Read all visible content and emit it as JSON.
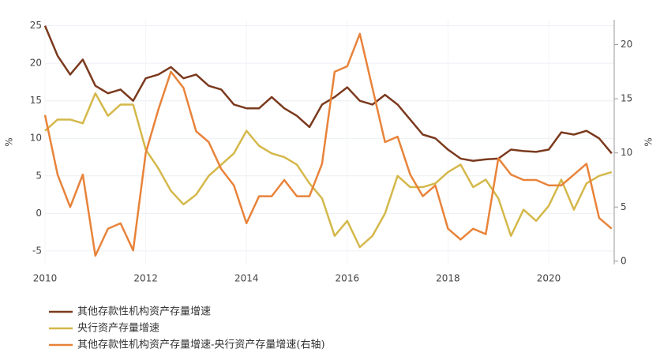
{
  "chart_data": {
    "type": "line",
    "x": [
      2010,
      2010.25,
      2010.5,
      2010.75,
      2011,
      2011.25,
      2011.5,
      2011.75,
      2012,
      2012.25,
      2012.5,
      2012.75,
      2013,
      2013.25,
      2013.5,
      2013.75,
      2014,
      2014.25,
      2014.5,
      2014.75,
      2015,
      2015.25,
      2015.5,
      2015.75,
      2016,
      2016.25,
      2016.5,
      2016.75,
      2017,
      2017.25,
      2017.5,
      2017.75,
      2018,
      2018.25,
      2018.5,
      2018.75,
      2019,
      2019.25,
      2019.5,
      2019.75,
      2020,
      2020.25,
      2020.5,
      2020.75,
      2021,
      2021.25
    ],
    "series": [
      {
        "name": "其他存款性机构资产存量增速",
        "color": "#7b3a1e",
        "axis": "y",
        "values": [
          25,
          21,
          18.5,
          20.5,
          17,
          16,
          16.5,
          15,
          18,
          18.5,
          19.5,
          18,
          18.5,
          17,
          16.5,
          14.5,
          14,
          14,
          15.5,
          14,
          13,
          11.5,
          14.5,
          15.5,
          16.8,
          15,
          14.5,
          15.8,
          14.5,
          12.5,
          10.5,
          10,
          8.5,
          7.3,
          7,
          7.2,
          7.3,
          8.5,
          8.3,
          8.2,
          8.5,
          10.8,
          10.5,
          11,
          10,
          8
        ]
      },
      {
        "name": "央行资产存量增速",
        "color": "#d4b84a",
        "axis": "y",
        "values": [
          11,
          12.5,
          12.5,
          12,
          16,
          13,
          14.5,
          14.5,
          8.5,
          6,
          3,
          1.2,
          2.5,
          5,
          6.5,
          8,
          11,
          9,
          8,
          7.5,
          6.5,
          4,
          2,
          -3,
          -1,
          -4.5,
          -3,
          0,
          5,
          3.5,
          3.5,
          4,
          5.5,
          6.5,
          3.5,
          4.5,
          2,
          -3,
          0.5,
          -1,
          1,
          4.5,
          0.5,
          4,
          5,
          5.5
        ]
      },
      {
        "name": "其他存款性机构资产存量增速-央行资产存量增速(右轴)",
        "color": "#e8833a",
        "axis": "y2",
        "values": [
          13.5,
          8,
          5,
          8,
          0.5,
          3,
          3.5,
          1,
          10,
          14,
          17.5,
          16,
          12,
          11,
          8.5,
          7,
          3.5,
          6,
          6,
          7.5,
          6,
          6,
          9,
          17.5,
          18,
          21,
          16,
          11,
          11.5,
          8,
          6,
          7,
          3,
          2,
          3,
          2.5,
          9.5,
          8,
          7.5,
          7.5,
          7,
          7,
          8,
          9,
          4,
          3
        ]
      }
    ],
    "xlim": [
      2010,
      2021.3
    ],
    "xticks": [
      2010,
      2012,
      2014,
      2016,
      2018,
      2020
    ],
    "ylim": [
      -6.8,
      25.8
    ],
    "yticks": [
      -5,
      0,
      5,
      10,
      15,
      20,
      25
    ],
    "y2lim": [
      -0.3,
      22.3
    ],
    "y2ticks": [
      0,
      5,
      10,
      15,
      20
    ],
    "ylabel": "%",
    "y2label": "%",
    "grid": true
  }
}
